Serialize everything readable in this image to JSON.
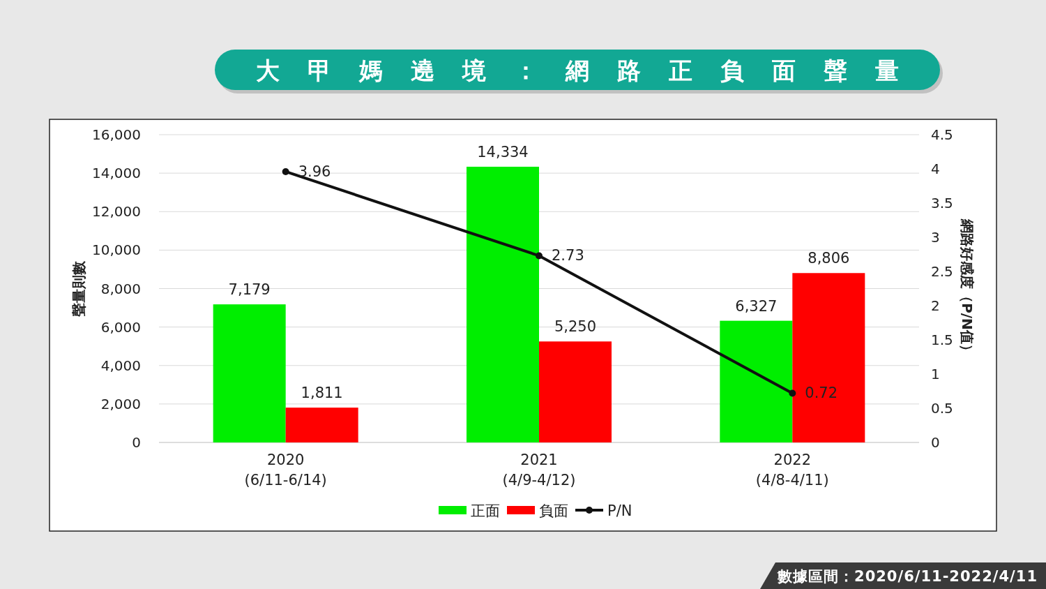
{
  "chart_data": {
    "type": "bar",
    "title": "大甲媽遶境：網路正負面聲量",
    "ylabel": "聲量則數",
    "y2label": "網路好感度（P/N值）",
    "categories": [
      "2020\n(6/11-6/14)",
      "2021\n(4/9-4/12)",
      "2022\n(4/8-4/11)"
    ],
    "series": [
      {
        "name": "正面",
        "color": "#00ee00",
        "values": [
          7179,
          14334,
          6327
        ],
        "value_labels": [
          "7,179",
          "14,334",
          "6,327"
        ]
      },
      {
        "name": "負面",
        "color": "#ff0000",
        "values": [
          1811,
          5250,
          8806
        ],
        "value_labels": [
          "1,811",
          "5,250",
          "8,806"
        ]
      },
      {
        "name": "P/N",
        "type": "line",
        "axis": "y2",
        "color": "#111111",
        "marker": "circle",
        "line_style": "solid",
        "values": [
          3.96,
          2.73,
          0.72
        ],
        "value_labels": [
          "3.96",
          "2.73",
          "0.72"
        ]
      }
    ],
    "ylim": [
      0,
      16000
    ],
    "yticks": [
      {
        "value": 0,
        "label": "0"
      },
      {
        "value": 2000,
        "label": "2,000"
      },
      {
        "value": 4000,
        "label": "4,000"
      },
      {
        "value": 6000,
        "label": "6,000"
      },
      {
        "value": 8000,
        "label": "8,000"
      },
      {
        "value": 10000,
        "label": "10,000"
      },
      {
        "value": 12000,
        "label": "12,000"
      },
      {
        "value": 14000,
        "label": "14,000"
      },
      {
        "value": 16000,
        "label": "16,000"
      }
    ],
    "y2lim": [
      0,
      4.5
    ],
    "y2ticks": [
      0,
      0.5,
      1,
      1.5,
      2,
      2.5,
      3,
      3.5,
      4,
      4.5
    ],
    "grid": "y",
    "legend": "bottom",
    "annotations": [
      "數據區間：2020/6/11-2022/4/11"
    ]
  }
}
